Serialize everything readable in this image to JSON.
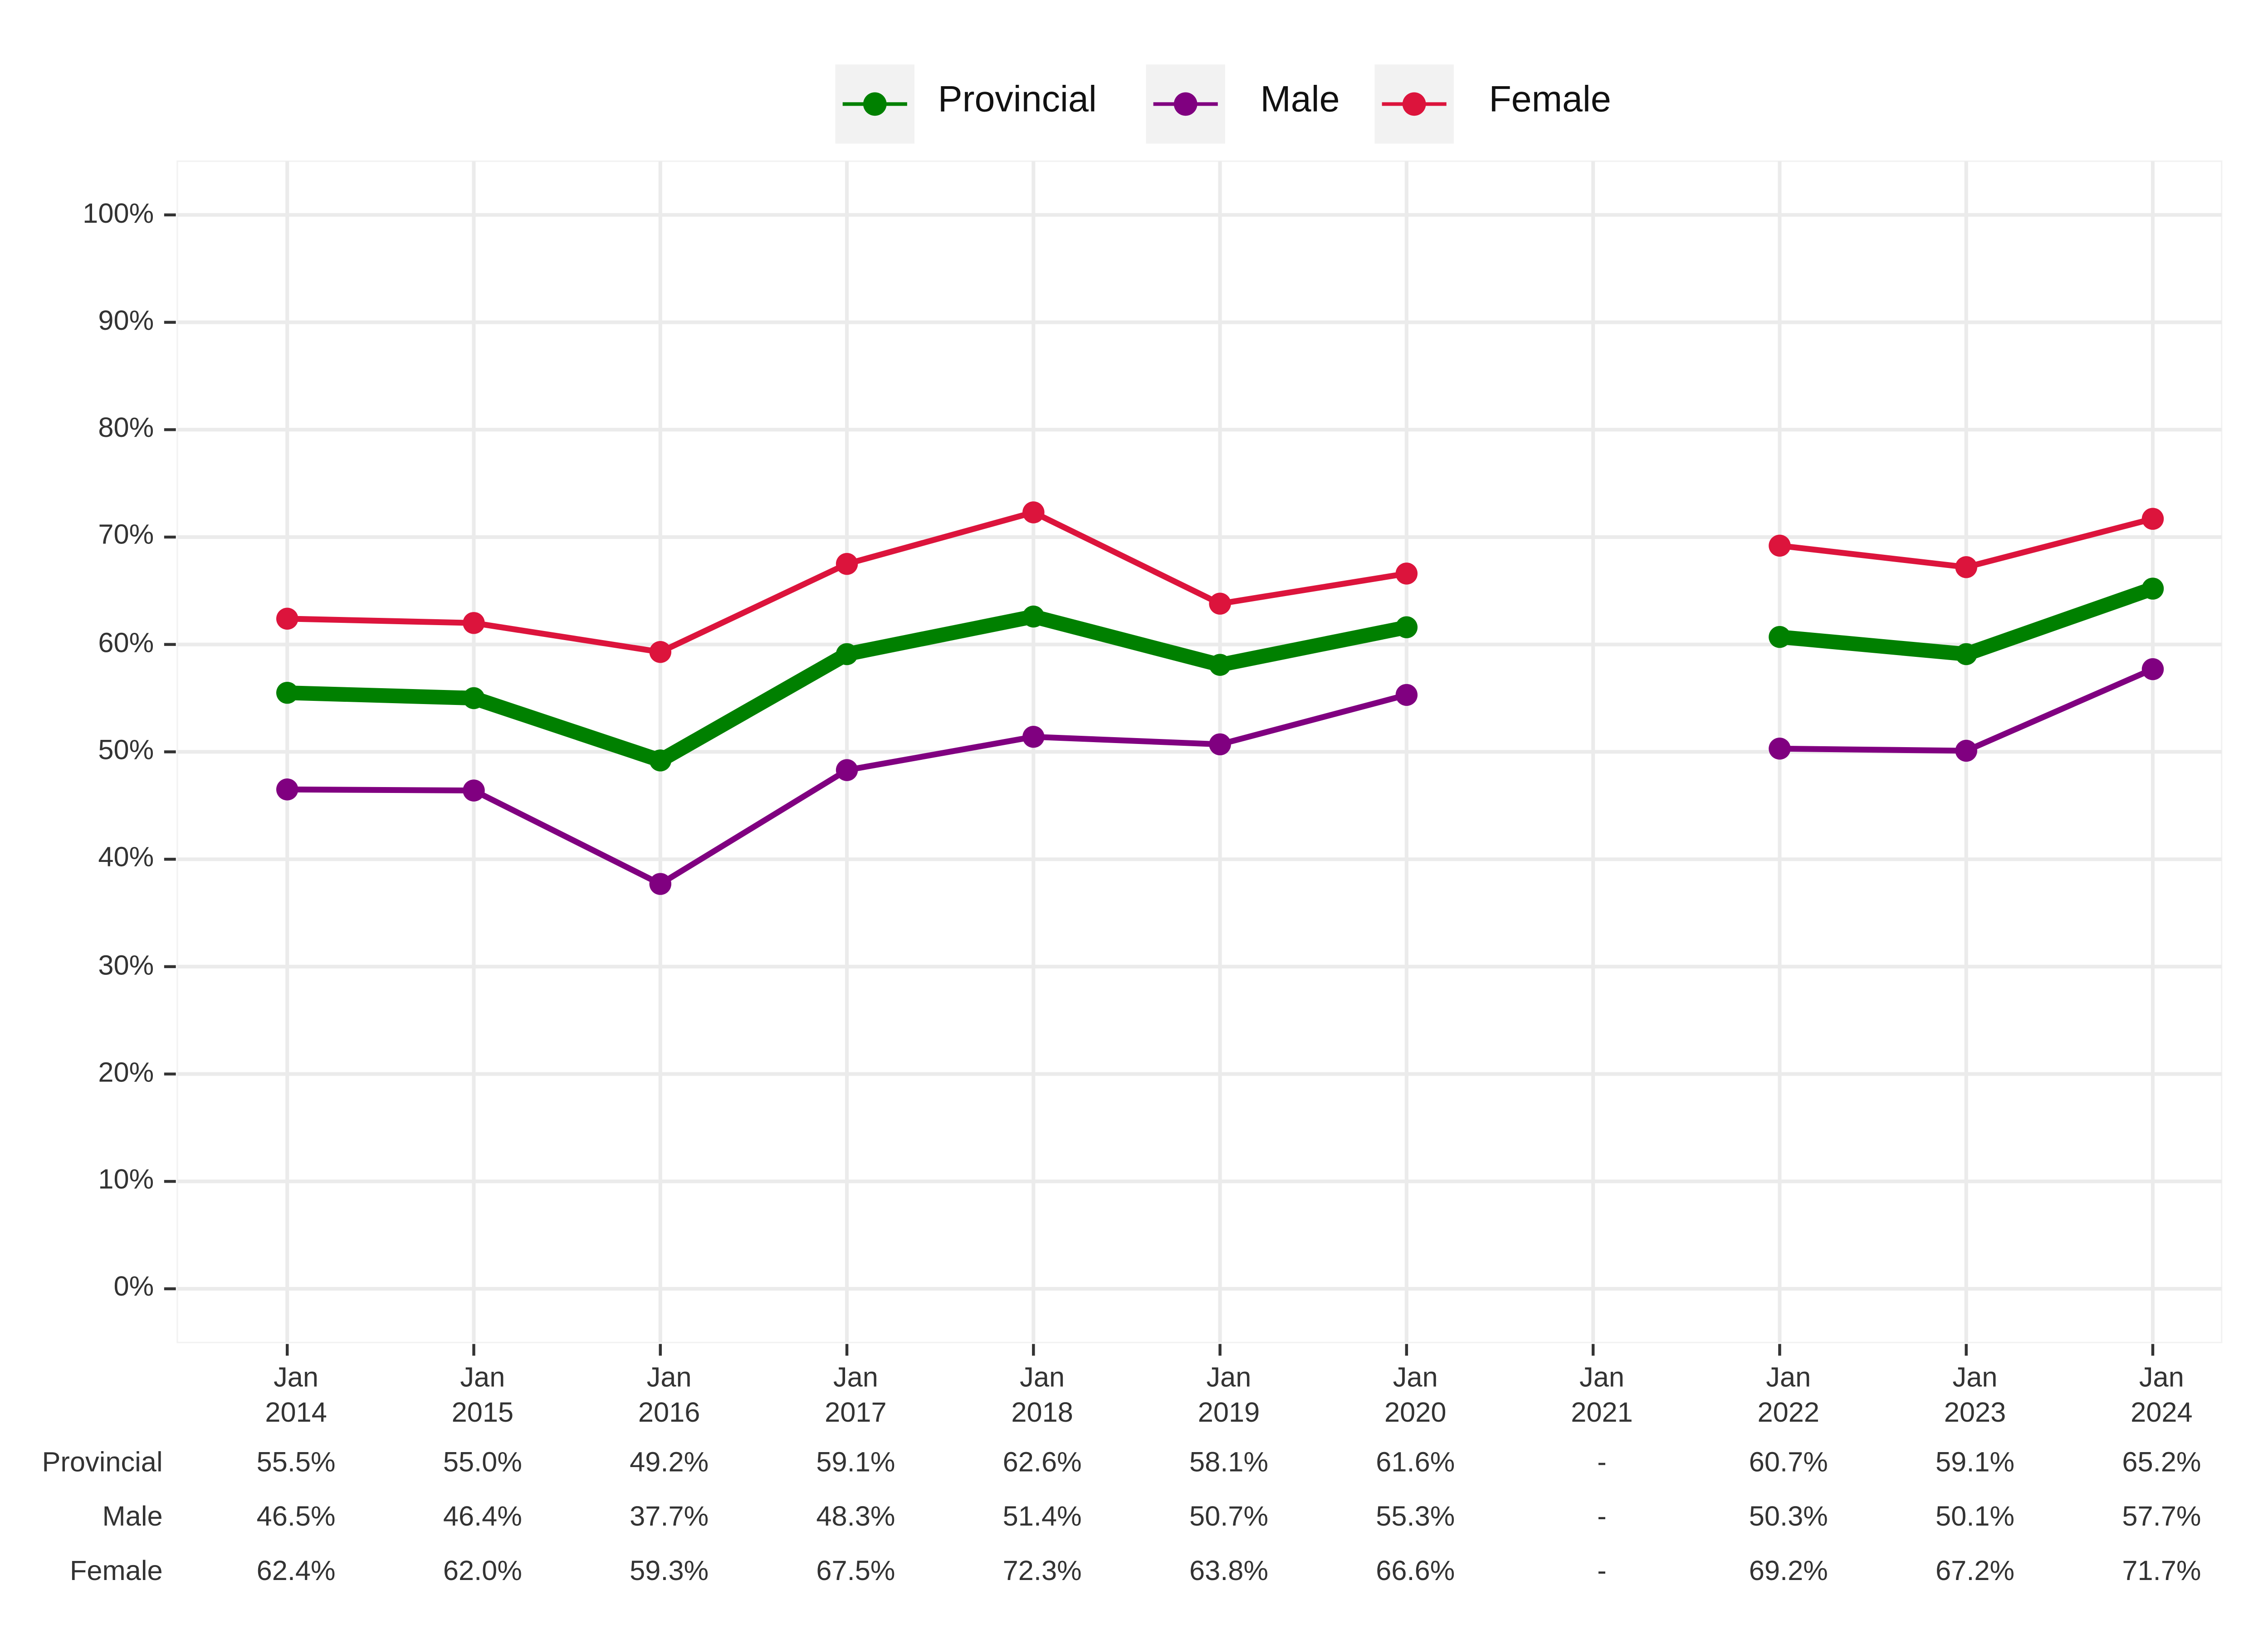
{
  "chart_data": {
    "type": "line",
    "categories": [
      "Jan\n2014",
      "Jan\n2015",
      "Jan\n2016",
      "Jan\n2017",
      "Jan\n2018",
      "Jan\n2019",
      "Jan\n2020",
      "Jan\n2021",
      "Jan\n2022",
      "Jan\n2023",
      "Jan\n2024"
    ],
    "series": [
      {
        "name": "Provincial",
        "color": "#008000",
        "linewidth": 10,
        "values": [
          55.5,
          55.0,
          49.2,
          59.1,
          62.6,
          58.1,
          61.6,
          null,
          60.7,
          59.1,
          65.2
        ],
        "value_labels": [
          "55.5%",
          "55.0%",
          "49.2%",
          "59.1%",
          "62.6%",
          "58.1%",
          "61.6%",
          "-",
          "60.7%",
          "59.1%",
          "65.2%"
        ]
      },
      {
        "name": "Male",
        "color": "#800080",
        "linewidth": 4,
        "values": [
          46.5,
          46.4,
          37.7,
          48.3,
          51.4,
          50.7,
          55.3,
          null,
          50.3,
          50.1,
          57.7
        ],
        "value_labels": [
          "46.5%",
          "46.4%",
          "37.7%",
          "48.3%",
          "51.4%",
          "50.7%",
          "55.3%",
          "-",
          "50.3%",
          "50.1%",
          "57.7%"
        ]
      },
      {
        "name": "Female",
        "color": "#dc143c",
        "linewidth": 4,
        "values": [
          62.4,
          62.0,
          59.3,
          67.5,
          72.3,
          63.8,
          66.6,
          null,
          69.2,
          67.2,
          71.7
        ],
        "value_labels": [
          "62.4%",
          "62.0%",
          "59.3%",
          "67.5%",
          "72.3%",
          "63.8%",
          "66.6%",
          "-",
          "69.2%",
          "67.2%",
          "71.7%"
        ]
      }
    ],
    "ylim": [
      -5,
      105
    ],
    "yticks": [
      {
        "value": 0,
        "label": "0%"
      },
      {
        "value": 10,
        "label": "10%"
      },
      {
        "value": 20,
        "label": "20%"
      },
      {
        "value": 30,
        "label": "30%"
      },
      {
        "value": 40,
        "label": "40%"
      },
      {
        "value": 50,
        "label": "50%"
      },
      {
        "value": 60,
        "label": "60%"
      },
      {
        "value": 70,
        "label": "70%"
      },
      {
        "value": 80,
        "label": "80%"
      },
      {
        "value": 90,
        "label": "90%"
      },
      {
        "value": 100,
        "label": "100%"
      }
    ],
    "grid": true,
    "legend": "top"
  }
}
